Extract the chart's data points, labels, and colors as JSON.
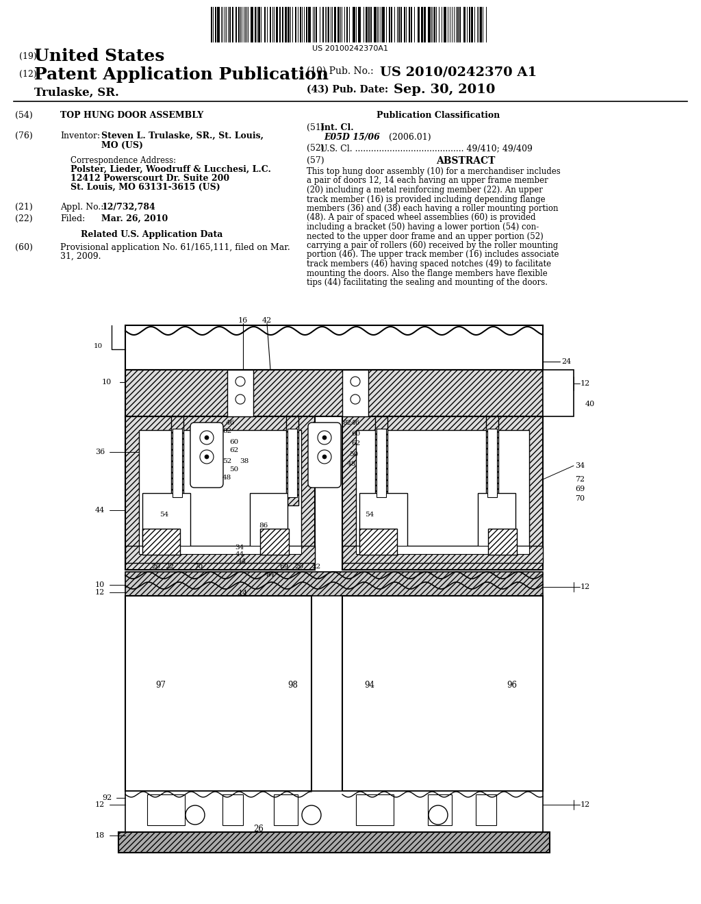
{
  "background_color": "#ffffff",
  "barcode_text": "US 20100242370A1",
  "title_19_small": "(19)",
  "title_19_large": "United States",
  "title_12_small": "(12)",
  "title_12_large": "Patent Application Publication",
  "inventor_name_line": "    Trulaske, SR.",
  "pub_no_label": "(10) Pub. No.:",
  "pub_no_value": "US 2010/0242370 A1",
  "pub_date_label": "(43) Pub. Date:",
  "pub_date_value": "Sep. 30, 2010",
  "field_54_label": "(54)",
  "field_54_value": "TOP HUNG DOOR ASSEMBLY",
  "pub_class_header": "Publication Classification",
  "int_cl_label": "Int. Cl.",
  "int_cl_value": "E05D 15/06",
  "int_cl_year": "(2006.01)",
  "us_cl_label": "U.S. Cl. ......................................... 49/410; 49/409",
  "abstract_header": "ABSTRACT",
  "abstract_lines": [
    "This top hung door assembly (10) for a merchandiser includes",
    "a pair of doors 12, 14 each having an upper frame member",
    "(20) including a metal reinforcing member (22). An upper",
    "track member (16) is provided including depending flange",
    "members (36) and (38) each having a roller mounting portion",
    "(48). A pair of spaced wheel assemblies (60) is provided",
    "including a bracket (50) having a lower portion (54) con-",
    "nected to the upper door frame and an upper portion (52)",
    "carrying a pair of rollers (60) received by the roller mounting",
    "portion (46). The upper track member (16) includes associate",
    "track members (46) having spaced notches (49) to facilitate",
    "mounting the doors. Also the flange members have flexible",
    "tips (44) facilitating the sealing and mounting of the doors."
  ],
  "inventor_label": "Inventor:",
  "inventor_value1": "Steven L. Trulaske, SR., St. Louis,",
  "inventor_value2": "MO (US)",
  "correspondence_label": "Correspondence Address:",
  "correspondence_firm": "Polster, Lieder, Woodruff & Lucchesi, L.C.",
  "correspondence_addr1": "12412 Powerscourt Dr. Suite 200",
  "correspondence_addr2": "St. Louis, MO 63131-3615 (US)",
  "appl_no_label": "Appl. No.:",
  "appl_no_value": "12/732,784",
  "filed_label": "Filed:",
  "filed_value": "Mar. 26, 2010",
  "related_header": "Related U.S. Application Data",
  "provisional_line1": "Provisional application No. 61/165,111, filed on Mar.",
  "provisional_line2": "31, 2009."
}
